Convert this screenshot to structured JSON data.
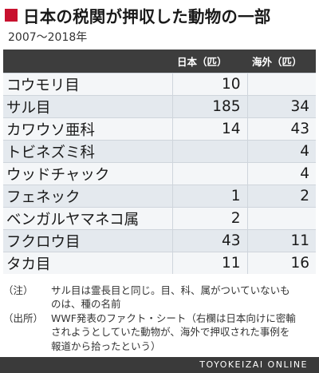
{
  "header": {
    "title": "日本の税関が押収した動物の一部",
    "subtitle": "2007〜2018年",
    "accent_color": "#c8102e"
  },
  "table": {
    "columns": [
      "",
      "日本（匹）",
      "海外（匹）"
    ],
    "rows": [
      {
        "name": "コウモリ目",
        "japan": "10",
        "overseas": ""
      },
      {
        "name": "サル目",
        "japan": "185",
        "overseas": "34"
      },
      {
        "name": "カワウソ亜科",
        "japan": "14",
        "overseas": "43"
      },
      {
        "name": "トビネズミ科",
        "japan": "",
        "overseas": "4"
      },
      {
        "name": "ウッドチャック",
        "japan": "",
        "overseas": "4"
      },
      {
        "name": "フェネック",
        "japan": "1",
        "overseas": "2"
      },
      {
        "name": "ベンガルヤマネコ属",
        "japan": "2",
        "overseas": ""
      },
      {
        "name": "フクロウ目",
        "japan": "43",
        "overseas": "11"
      },
      {
        "name": "タカ目",
        "japan": "11",
        "overseas": "16"
      }
    ]
  },
  "notes": [
    {
      "tag": "（注）",
      "text": "サル目は霊長目と同じ。目、科、属がついていないものは、種の名前"
    },
    {
      "tag": "（出所）",
      "text": "WWF発表のファクト・シート（右欄は日本向けに密輸されようとしていた動物が、海外で押収された事例を報道から拾ったという）"
    }
  ],
  "footer": {
    "brand": "TOYOKEIZAI ONLINE"
  }
}
